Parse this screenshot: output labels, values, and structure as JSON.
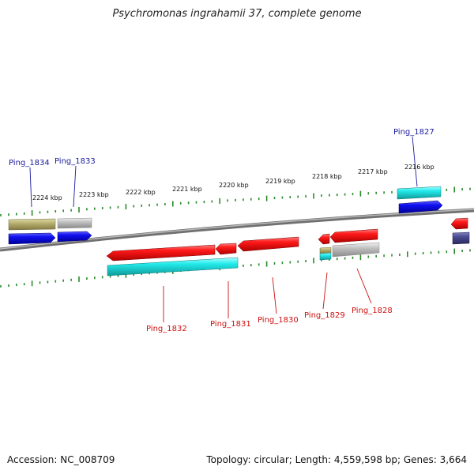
{
  "title": "Psychromonas ingrahamii 37, complete genome",
  "footer": {
    "accession": "Accession: NC_008709",
    "summary": "Topology: circular; Length: 4,559,598 bp; Genes: 3,664"
  },
  "colors": {
    "backbone": "#808080",
    "tick": "#2a8a2a",
    "top_label": "#1a1aa0",
    "bottom_label": "#cc1111",
    "forward_gene": "#1010e0",
    "reverse_gene": "#ee1111",
    "cyan_feature": "#22e8e8",
    "khaki_feature": "#b8b070",
    "gray_feature": "#c0c0c0",
    "navy_feature": "#4a4a90"
  },
  "scale_labels": [
    {
      "text": "2224 kbp"
    },
    {
      "text": "2223 kbp"
    },
    {
      "text": "2222 kbp"
    },
    {
      "text": "2221 kbp"
    },
    {
      "text": "2220 kbp"
    },
    {
      "text": "2219 kbp"
    },
    {
      "text": "2218 kbp"
    },
    {
      "text": "2217 kbp"
    },
    {
      "text": "2216 kbp"
    }
  ],
  "gene_labels": [
    {
      "id": "Ping_1834",
      "strand": "top"
    },
    {
      "id": "Ping_1833",
      "strand": "top"
    },
    {
      "id": "Ping_1827",
      "strand": "top"
    },
    {
      "id": "Ping_1832",
      "strand": "bottom"
    },
    {
      "id": "Ping_1831",
      "strand": "bottom"
    },
    {
      "id": "Ping_1830",
      "strand": "bottom"
    },
    {
      "id": "Ping_1829",
      "strand": "bottom"
    },
    {
      "id": "Ping_1828",
      "strand": "bottom"
    }
  ]
}
